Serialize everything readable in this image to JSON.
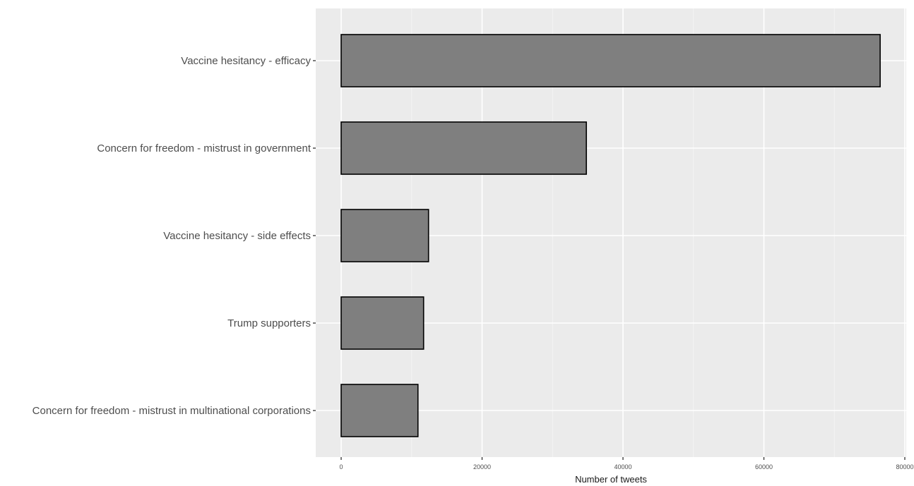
{
  "chart_data": {
    "type": "bar",
    "orientation": "horizontal",
    "title": "",
    "xlabel": "Number of tweets",
    "ylabel": "",
    "xlim": [
      0,
      80000
    ],
    "x_ticks": [
      0,
      20000,
      40000,
      60000,
      80000
    ],
    "x_tick_labels": [
      "0",
      "20000",
      "40000",
      "60000",
      "80000"
    ],
    "grid": true,
    "legend": "none",
    "categories": [
      "Vaccine hesitancy -  efficacy",
      "Concern for freedom - mistrust in government",
      "Vaccine hesitancy -  side effects",
      "Trump supporters",
      "Concern for freedom - mistrust in multinational corporations"
    ],
    "values": [
      76500,
      34800,
      12400,
      11700,
      10900
    ],
    "colors": {
      "bar_fill": "#7f7f7f",
      "bar_stroke": "#000000",
      "panel_background": "#ebebeb",
      "grid_major": "#ffffff",
      "grid_minor": "#f4f4f4"
    }
  }
}
